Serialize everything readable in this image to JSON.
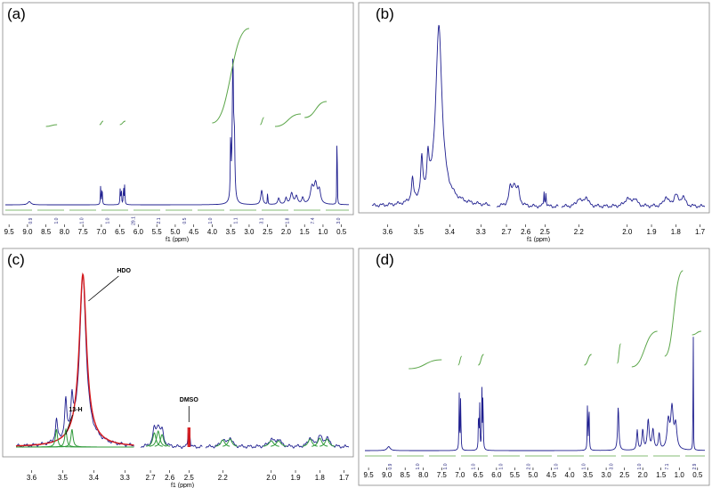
{
  "colors": {
    "spectrum": "#1f1f8f",
    "integral": "#5ca64a",
    "fit_red": "#d4181b",
    "fit_green": "#2f9a3a",
    "frame": "#888888"
  },
  "chart_data": [
    {
      "id": "a",
      "panel_label": "(a)",
      "type": "line",
      "title": "",
      "xlabel": "f1 (ppm)",
      "xlim": [
        9.6,
        0.3
      ],
      "x_reversed": true,
      "x_ticks": [
        "9.5",
        "9.0",
        "8.5",
        "8.0",
        "7.5",
        "7.0",
        "6.5",
        "6.0",
        "5.5",
        "5.0",
        "4.5",
        "4.0",
        "3.5",
        "3.0",
        "2.5",
        "2.0",
        "1.5",
        "1.0",
        "0.5"
      ],
      "peaks": [
        {
          "ppm": 8.95,
          "height": 0.02,
          "width": 0.05
        },
        {
          "ppm": 7.02,
          "height": 0.12,
          "width": 0.008
        },
        {
          "ppm": 6.98,
          "height": 0.12,
          "width": 0.008
        },
        {
          "ppm": 6.49,
          "height": 0.1,
          "width": 0.008
        },
        {
          "ppm": 6.46,
          "height": 0.1,
          "width": 0.008
        },
        {
          "ppm": 6.4,
          "height": 0.12,
          "width": 0.008
        },
        {
          "ppm": 6.37,
          "height": 0.12,
          "width": 0.008
        },
        {
          "ppm": 3.5,
          "height": 0.4,
          "width": 0.01
        },
        {
          "ppm": 3.44,
          "height": 0.9,
          "width": 0.02
        },
        {
          "ppm": 3.4,
          "height": 0.35,
          "width": 0.015
        },
        {
          "ppm": 2.66,
          "height": 0.09,
          "width": 0.03
        },
        {
          "ppm": 2.5,
          "height": 0.1,
          "width": 0.006
        },
        {
          "ppm": 2.2,
          "height": 0.04,
          "width": 0.03
        },
        {
          "ppm": 2.0,
          "height": 0.04,
          "width": 0.03
        },
        {
          "ppm": 1.85,
          "height": 0.07,
          "width": 0.04
        },
        {
          "ppm": 1.72,
          "height": 0.05,
          "width": 0.04
        },
        {
          "ppm": 1.55,
          "height": 0.04,
          "width": 0.03
        },
        {
          "ppm": 1.3,
          "height": 0.1,
          "width": 0.05
        },
        {
          "ppm": 1.2,
          "height": 0.12,
          "width": 0.05
        },
        {
          "ppm": 1.1,
          "height": 0.08,
          "width": 0.04
        },
        {
          "ppm": 0.62,
          "height": 1.0,
          "width": 0.004
        }
      ],
      "integral_labels": [
        "0.9",
        "1.0",
        "1.0",
        "1.0",
        "29.1",
        "2.1",
        "0.5",
        "1.0",
        "1.1",
        "3.1",
        "1.8",
        "7.4",
        "3.0"
      ]
    },
    {
      "id": "b",
      "panel_label": "(b)",
      "type": "line",
      "title": "",
      "xlabel": "f1 (ppm)",
      "x_ticks": [
        "3.6",
        "3.5",
        "3.4",
        "3.3",
        "2.7",
        "2.6",
        "2.5",
        "2.2",
        "2.0",
        "1.9",
        "1.8",
        "1.7"
      ],
      "segments": [
        {
          "from": 3.65,
          "to": 3.29
        },
        {
          "from": 2.75,
          "to": 2.43
        },
        {
          "from": 2.27,
          "to": 1.68
        }
      ],
      "peaks": [
        {
          "ppm": 3.52,
          "height": 0.12,
          "width": 0.004,
          "seg": 0
        },
        {
          "ppm": 3.49,
          "height": 0.2,
          "width": 0.004,
          "seg": 0
        },
        {
          "ppm": 3.47,
          "height": 0.18,
          "width": 0.004,
          "seg": 0
        },
        {
          "ppm": 3.435,
          "height": 0.9,
          "width": 0.012,
          "seg": 0
        },
        {
          "ppm": 2.68,
          "height": 0.09,
          "width": 0.01,
          "seg": 1
        },
        {
          "ppm": 2.66,
          "height": 0.1,
          "width": 0.01,
          "seg": 1
        },
        {
          "ppm": 2.64,
          "height": 0.08,
          "width": 0.01,
          "seg": 1
        },
        {
          "ppm": 2.505,
          "height": 0.08,
          "width": 0.002,
          "seg": 1
        },
        {
          "ppm": 2.495,
          "height": 0.08,
          "width": 0.002,
          "seg": 1
        },
        {
          "ppm": 2.2,
          "height": 0.04,
          "width": 0.01,
          "seg": 2
        },
        {
          "ppm": 2.17,
          "height": 0.05,
          "width": 0.01,
          "seg": 2
        },
        {
          "ppm": 2.0,
          "height": 0.04,
          "width": 0.012,
          "seg": 2
        },
        {
          "ppm": 1.97,
          "height": 0.04,
          "width": 0.012,
          "seg": 2
        },
        {
          "ppm": 1.84,
          "height": 0.05,
          "width": 0.01,
          "seg": 2
        },
        {
          "ppm": 1.8,
          "height": 0.06,
          "width": 0.01,
          "seg": 2
        },
        {
          "ppm": 1.77,
          "height": 0.05,
          "width": 0.01,
          "seg": 2
        }
      ]
    },
    {
      "id": "c",
      "panel_label": "(c)",
      "type": "line",
      "title": "",
      "xlabel": "f1 (ppm)",
      "x_ticks": [
        "3.6",
        "3.5",
        "3.4",
        "3.3",
        "2.7",
        "2.6",
        "2.5",
        "2.2",
        "2.0",
        "1.9",
        "1.8",
        "1.7"
      ],
      "annotations": [
        "HDO",
        "13-H",
        "DMSO"
      ]
    },
    {
      "id": "d",
      "panel_label": "(d)",
      "type": "line",
      "title": "",
      "xlabel": "",
      "xlim": [
        9.6,
        0.3
      ],
      "x_reversed": true,
      "x_ticks": [
        "9.5",
        "9.0",
        "8.5",
        "8.0",
        "7.5",
        "7.0",
        "6.5",
        "6.0",
        "5.5",
        "5.0",
        "4.5",
        "4.0",
        "3.5",
        "3.0",
        "2.5",
        "2.0",
        "1.5",
        "1.0",
        "0.5"
      ],
      "peaks": [
        {
          "ppm": 8.95,
          "height": 0.02,
          "width": 0.05
        },
        {
          "ppm": 7.02,
          "height": 0.28,
          "width": 0.008
        },
        {
          "ppm": 6.98,
          "height": 0.28,
          "width": 0.008
        },
        {
          "ppm": 6.49,
          "height": 0.22,
          "width": 0.008
        },
        {
          "ppm": 6.46,
          "height": 0.22,
          "width": 0.008
        },
        {
          "ppm": 6.4,
          "height": 0.3,
          "width": 0.008
        },
        {
          "ppm": 6.37,
          "height": 0.3,
          "width": 0.008
        },
        {
          "ppm": 3.51,
          "height": 0.26,
          "width": 0.008
        },
        {
          "ppm": 3.47,
          "height": 0.26,
          "width": 0.008
        },
        {
          "ppm": 2.67,
          "height": 0.22,
          "width": 0.02
        },
        {
          "ppm": 2.15,
          "height": 0.1,
          "width": 0.02
        },
        {
          "ppm": 2.0,
          "height": 0.1,
          "width": 0.025
        },
        {
          "ppm": 1.85,
          "height": 0.15,
          "width": 0.03
        },
        {
          "ppm": 1.72,
          "height": 0.1,
          "width": 0.03
        },
        {
          "ppm": 1.55,
          "height": 0.08,
          "width": 0.025
        },
        {
          "ppm": 1.3,
          "height": 0.14,
          "width": 0.04
        },
        {
          "ppm": 1.2,
          "height": 0.2,
          "width": 0.04
        },
        {
          "ppm": 1.1,
          "height": 0.12,
          "width": 0.04
        },
        {
          "ppm": 0.62,
          "height": 1.0,
          "width": 0.004
        }
      ],
      "integral_labels": [
        "0.9",
        "1.0",
        "1.0",
        "1.0",
        "1.0",
        "2.0",
        "1.0",
        "1.0",
        "3.0",
        "1.0",
        "7.1",
        "2.9"
      ]
    }
  ]
}
